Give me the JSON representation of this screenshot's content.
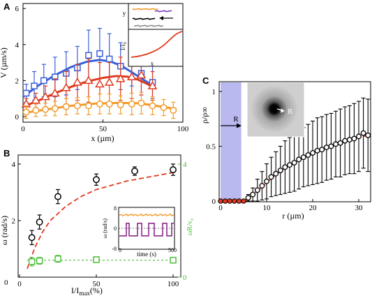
{
  "chart_data": [
    {
      "panel": "A",
      "type": "scatter",
      "xlabel": "x (µm)",
      "ylabel": "V (µm/s)",
      "xlim": [
        0,
        100
      ],
      "ylim": [
        -0.5,
        6
      ],
      "xticks": [
        "0",
        "50",
        "100"
      ],
      "yticks": [
        "0",
        "2",
        "4",
        "6"
      ],
      "series": [
        {
          "marker": "square",
          "color": "#3a5fd9",
          "x": [
            2,
            7,
            13,
            20,
            27,
            34,
            41,
            48,
            54,
            61,
            68,
            74,
            81
          ],
          "y": [
            1.3,
            1.7,
            2.0,
            2.2,
            2.4,
            2.7,
            3.4,
            3.5,
            3.2,
            2.8,
            3.1,
            2.4,
            1.9
          ],
          "err": [
            0.5,
            0.8,
            0.9,
            1.1,
            1.2,
            1.2,
            1.4,
            1.4,
            1.4,
            1.3,
            1.4,
            1.2,
            0.9
          ],
          "fit": [
            [
              0,
              1.1
            ],
            [
              10,
              1.75
            ],
            [
              20,
              2.3
            ],
            [
              30,
              2.75
            ],
            [
              40,
              3.05
            ],
            [
              48,
              3.15
            ],
            [
              55,
              3.05
            ],
            [
              62,
              2.8
            ],
            [
              70,
              2.35
            ],
            [
              78,
              1.9
            ],
            [
              82,
              1.65
            ]
          ]
        },
        {
          "marker": "triangle",
          "color": "#e03a1f",
          "x": [
            2,
            8,
            14,
            20,
            27,
            34,
            41,
            48,
            54,
            61,
            68,
            74,
            81
          ],
          "y": [
            0.7,
            0.9,
            1.1,
            1.3,
            1.6,
            1.9,
            2.0,
            1.8,
            1.9,
            2.1,
            2.2,
            2.3,
            1.7
          ],
          "err": [
            0.3,
            0.4,
            0.6,
            0.8,
            0.9,
            1.0,
            1.2,
            1.2,
            1.1,
            1.2,
            1.2,
            1.1,
            0.8
          ],
          "fit": [
            [
              0,
              0.55
            ],
            [
              10,
              0.9
            ],
            [
              20,
              1.3
            ],
            [
              30,
              1.65
            ],
            [
              40,
              1.95
            ],
            [
              50,
              2.15
            ],
            [
              58,
              2.25
            ],
            [
              65,
              2.22
            ],
            [
              72,
              2.05
            ],
            [
              78,
              1.8
            ],
            [
              83,
              1.55
            ]
          ]
        },
        {
          "marker": "circle",
          "color": "#f39a2a",
          "x": [
            2,
            8,
            14,
            20,
            27,
            34,
            41,
            48,
            54,
            61,
            68,
            74,
            81,
            88,
            94
          ],
          "y": [
            0.25,
            0.35,
            0.4,
            0.45,
            0.55,
            0.6,
            0.6,
            0.7,
            0.7,
            0.65,
            0.7,
            0.75,
            0.6,
            0.5,
            0.35
          ],
          "err": [
            0.35,
            0.35,
            0.35,
            0.4,
            0.45,
            0.45,
            0.5,
            0.55,
            0.55,
            0.5,
            0.6,
            0.6,
            0.5,
            0.45,
            0.45
          ],
          "fit": [
            [
              0,
              0.2
            ],
            [
              15,
              0.4
            ],
            [
              30,
              0.6
            ],
            [
              45,
              0.72
            ],
            [
              60,
              0.76
            ],
            [
              72,
              0.74
            ],
            [
              82,
              0.62
            ],
            [
              90,
              0.5
            ],
            [
              96,
              0.42
            ]
          ]
        }
      ],
      "inset": {
        "top_ylabel": "y",
        "bottom_ylabel": "I/I₀",
        "bottom_xlabel": "x",
        "tracks": [
          {
            "color": "#f39a2a"
          },
          {
            "color": "#7a3cb8"
          },
          {
            "color": "#000000"
          },
          {
            "color": "#8c8c8c"
          }
        ]
      }
    },
    {
      "panel": "B",
      "type": "scatter",
      "xlabel_main": "I/I",
      "xlabel_sub": "max",
      "xlabel_unit": "(%)",
      "ylabel": "ω (rad/s)",
      "ylabel_right": "ωR/v₀",
      "xlim": [
        0,
        100
      ],
      "ylim": [
        0,
        4
      ],
      "xticks": [
        "0",
        "50",
        "100"
      ],
      "yticks": [
        "2",
        "4"
      ],
      "yticks_right": [
        "0",
        "4"
      ],
      "series": [
        {
          "marker": "circle",
          "color": "#000000",
          "x": [
            8,
            13,
            25,
            50,
            75,
            100
          ],
          "y": [
            1.4,
            1.95,
            2.85,
            3.45,
            3.75,
            3.8
          ],
          "err": [
            0.25,
            0.25,
            0.25,
            0.2,
            0.15,
            0.2
          ],
          "fit_color": "#e03a1f",
          "fit": [
            [
              5,
              0.3
            ],
            [
              10,
              1.05
            ],
            [
              15,
              1.6
            ],
            [
              20,
              2.0
            ],
            [
              30,
              2.5
            ],
            [
              40,
              2.85
            ],
            [
              50,
              3.1
            ],
            [
              60,
              3.25
            ],
            [
              70,
              3.4
            ],
            [
              80,
              3.5
            ],
            [
              90,
              3.6
            ],
            [
              100,
              3.7
            ]
          ]
        },
        {
          "marker": "square",
          "color": "#4fbf3a",
          "x": [
            8,
            13,
            25,
            50,
            100
          ],
          "y": [
            0.55,
            0.58,
            0.65,
            0.62,
            0.6
          ],
          "err": [
            0.15,
            0.12,
            0.12,
            0.1,
            0.1
          ],
          "hline": 0.6
        }
      ],
      "inset": {
        "xlabel": "time (s)",
        "ylabel": "ω (rad/s)",
        "xticks": [
          "0",
          "500"
        ],
        "yticks": [
          "8",
          "0",
          "-8"
        ]
      }
    },
    {
      "panel": "C",
      "type": "scatter",
      "xlabel": "r (µm)",
      "ylabel": "ρ/ρ∞",
      "xlim": [
        0,
        32
      ],
      "ylim": [
        0,
        1.1
      ],
      "xticks": [
        "0",
        "10",
        "20",
        "30"
      ],
      "yticks": [
        "0",
        "0.5",
        "1"
      ],
      "shaded_region_label": "R",
      "shaded_region_x": [
        0,
        4.5
      ],
      "inset_label": "R",
      "series": [
        {
          "marker": "circle",
          "color": "#000000",
          "x": [
            0,
            1,
            2,
            3,
            4,
            5,
            6,
            7,
            8,
            9,
            10,
            11,
            12,
            13,
            14,
            15,
            16,
            17,
            18,
            19,
            20,
            21,
            22,
            23,
            24,
            25,
            26,
            27,
            28,
            29,
            30,
            31,
            32
          ],
          "y": [
            0,
            0,
            0,
            0,
            0,
            0,
            0.03,
            0.06,
            0.1,
            0.14,
            0.18,
            0.22,
            0.25,
            0.28,
            0.31,
            0.33,
            0.35,
            0.38,
            0.4,
            0.42,
            0.44,
            0.46,
            0.47,
            0.49,
            0.5,
            0.52,
            0.53,
            0.55,
            0.56,
            0.57,
            0.59,
            0.62,
            0.6
          ],
          "err": [
            0,
            0,
            0,
            0,
            0,
            0,
            0.03,
            0.06,
            0.1,
            0.13,
            0.16,
            0.18,
            0.2,
            0.22,
            0.24,
            0.25,
            0.26,
            0.27,
            0.27,
            0.28,
            0.29,
            0.3,
            0.3,
            0.3,
            0.3,
            0.3,
            0.31,
            0.31,
            0.31,
            0.32,
            0.32,
            0.32,
            0.33
          ],
          "fit_color": "#e03a1f",
          "fit": [
            [
              5,
              0
            ],
            [
              6,
              0.02
            ],
            [
              8,
              0.09
            ],
            [
              10,
              0.17
            ],
            [
              12,
              0.24
            ],
            [
              14,
              0.3
            ],
            [
              16,
              0.35
            ],
            [
              18,
              0.39
            ],
            [
              20,
              0.43
            ],
            [
              22,
              0.47
            ],
            [
              24,
              0.5
            ],
            [
              26,
              0.53
            ],
            [
              28,
              0.55
            ],
            [
              30,
              0.58
            ],
            [
              32,
              0.6
            ]
          ]
        }
      ]
    }
  ],
  "colors": {
    "blue": "#3a5fd9",
    "red": "#e03a1f",
    "orange": "#f39a2a",
    "purple": "#8a2a8a",
    "green": "#4fbf3a",
    "shade": "#b9b9f0",
    "axis": "#000000"
  }
}
